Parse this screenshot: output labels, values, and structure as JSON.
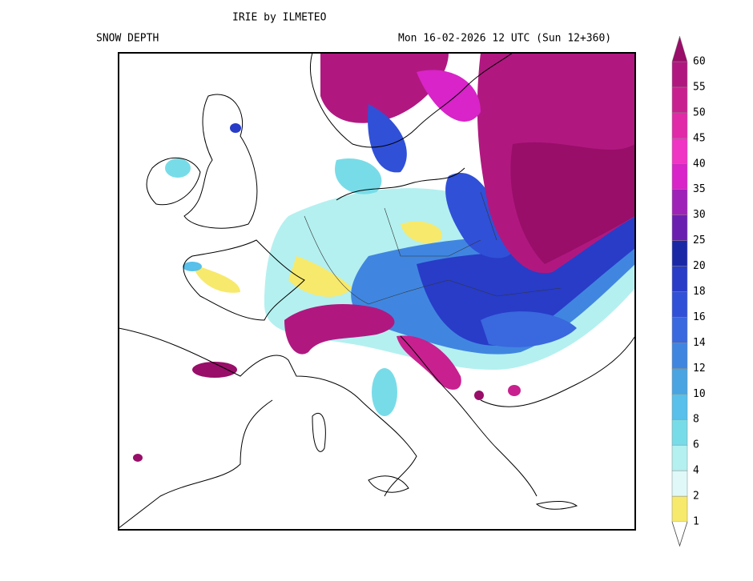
{
  "header": {
    "title": "IRIE by ILMETEO",
    "field": "SNOW DEPTH",
    "valid": "Mon 16-02-2026 12 UTC (Sun 12+360)"
  },
  "legend": {
    "levels": [
      1,
      2,
      4,
      6,
      8,
      10,
      12,
      14,
      16,
      18,
      20,
      25,
      30,
      35,
      40,
      45,
      50,
      55,
      60
    ],
    "colors": [
      "#f7e96b",
      "#e0f8f8",
      "#b4f0f0",
      "#78dce8",
      "#58c0ea",
      "#4aa4e2",
      "#4086e0",
      "#3a68de",
      "#3050d8",
      "#283cc8",
      "#1a28a6",
      "#6a1fb0",
      "#9e22b8",
      "#d824c8",
      "#f034c4",
      "#e02aa8",
      "#c8208f",
      "#b01880",
      "#980e68"
    ]
  }
}
